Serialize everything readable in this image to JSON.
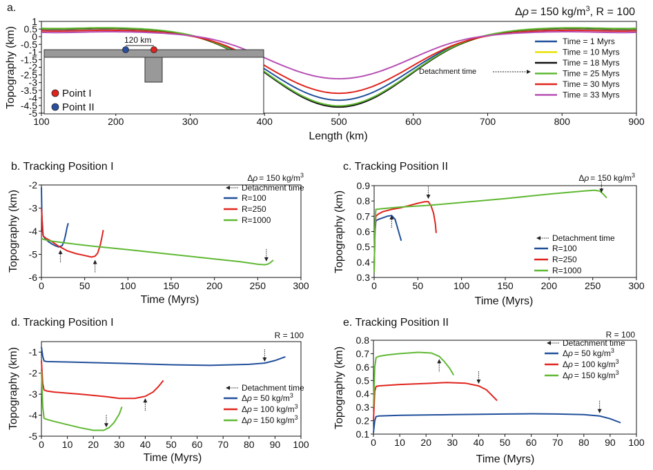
{
  "chart_data": [
    {
      "id": "a",
      "type": "line",
      "panel_label": "a.",
      "title_prefix": "Δ",
      "title_rho": "ρ",
      "title_value": "= 150 kg/m",
      "title_sup": "3",
      "title_suffix": ", R = 100",
      "xlabel": "Length (km)",
      "ylabel": "Topography (km)",
      "xlim": [
        100,
        900
      ],
      "ylim": [
        -5,
        1
      ],
      "xticks": [
        100,
        200,
        300,
        400,
        500,
        600,
        700,
        800,
        900
      ],
      "yticks": [
        1,
        0.5,
        0,
        -0.5,
        -1,
        -1.5,
        -2,
        -2.5,
        -3,
        -3.5,
        -4,
        -4.5,
        -5
      ],
      "series": [
        {
          "name": "Time = 1 Myrs",
          "color": "#1f4e9a",
          "flat": 0.55,
          "min": -4.15
        },
        {
          "name": "Time = 10 Myrs",
          "color": "#e8e000",
          "flat": 0.58,
          "min": -4.55
        },
        {
          "name": "Time = 18 Myrs",
          "color": "#111111",
          "flat": 0.6,
          "min": -4.6
        },
        {
          "name": "Time = 25 Myrs",
          "color": "#5fb832",
          "flat": 0.62,
          "min": -4.52
        },
        {
          "name": "Time = 30 Myrs",
          "color": "#e0231c",
          "flat": 0.45,
          "min": -3.7
        },
        {
          "name": "Time = 33 Myrs",
          "color": "#b64fb4",
          "flat": 0.35,
          "min": -2.75
        }
      ],
      "inset": {
        "distance_label": "120 km",
        "point1_label": "Point I",
        "point2_label": "Point II",
        "point1_color": "#e0231c",
        "point2_color": "#2a4fa0"
      },
      "annotation": "Detachment time"
    },
    {
      "id": "b",
      "type": "line",
      "panel_label": "b. Tracking Position I",
      "header_prefix": "Δ",
      "header_rho": "ρ",
      "header_value": "= 150 kg/m",
      "header_sup": "3",
      "legend_title": "Detachment time",
      "xlabel": "Time (Myrs)",
      "ylabel": "Topography (km)",
      "xlim": [
        0,
        300
      ],
      "ylim": [
        -6,
        -2
      ],
      "xticks": [
        0,
        50,
        100,
        150,
        200,
        250,
        300
      ],
      "yticks": [
        -2,
        -3,
        -4,
        -5,
        -6
      ],
      "series": [
        {
          "name": "R=100",
          "color": "#1f4e9a",
          "x": [
            0,
            0.5,
            1,
            2,
            4,
            8,
            12,
            16,
            20,
            24,
            26,
            28,
            29.5,
            31
          ],
          "y": [
            -2.1,
            -3.2,
            -3.9,
            -4.2,
            -4.3,
            -4.45,
            -4.55,
            -4.63,
            -4.68,
            -4.62,
            -4.45,
            -4.15,
            -3.85,
            -3.65
          ],
          "detach": [
            22,
            -4.72
          ]
        },
        {
          "name": "R=250",
          "color": "#e0231c",
          "x": [
            0,
            2,
            5,
            10,
            20,
            30,
            40,
            50,
            58,
            62,
            65,
            68,
            70,
            71.5
          ],
          "y": [
            -3.0,
            -4.2,
            -4.3,
            -4.4,
            -4.65,
            -4.85,
            -4.97,
            -5.05,
            -5.12,
            -5.08,
            -4.95,
            -4.6,
            -4.25,
            -3.95
          ],
          "detach": [
            62,
            -5.15
          ]
        },
        {
          "name": "R=1000",
          "color": "#5fb832",
          "x": [
            0,
            2,
            10,
            30,
            60,
            100,
            150,
            200,
            230,
            250,
            258,
            262,
            265,
            268
          ],
          "y": [
            -4.3,
            -4.35,
            -4.42,
            -4.52,
            -4.65,
            -4.8,
            -5.0,
            -5.2,
            -5.32,
            -5.43,
            -5.45,
            -5.42,
            -5.35,
            -5.25
          ],
          "detach": [
            260,
            -5.4
          ]
        }
      ]
    },
    {
      "id": "c",
      "type": "line",
      "panel_label": "c. Tracking Position II",
      "header_prefix": "Δ",
      "header_rho": "ρ",
      "header_value": "= 150 kg/m",
      "header_sup": "3",
      "legend_title": "Detachment time",
      "xlabel": "Time (Myrs)",
      "ylabel": "Topography (km)",
      "xlim": [
        0,
        300
      ],
      "ylim": [
        0.3,
        0.9
      ],
      "xticks": [
        0,
        50,
        100,
        150,
        200,
        250,
        300
      ],
      "yticks": [
        0.9,
        0.8,
        0.7,
        0.6,
        0.5,
        0.4,
        0.3
      ],
      "series": [
        {
          "name": "R=100",
          "color": "#1f4e9a",
          "x": [
            0,
            1,
            2,
            5,
            10,
            15,
            20,
            24,
            27,
            29,
            31
          ],
          "y": [
            0.36,
            0.6,
            0.67,
            0.68,
            0.69,
            0.7,
            0.705,
            0.68,
            0.62,
            0.58,
            0.54
          ],
          "detach": [
            20,
            0.72
          ]
        },
        {
          "name": "R=250",
          "color": "#e0231c",
          "x": [
            0,
            1,
            2,
            5,
            10,
            20,
            30,
            40,
            50,
            58,
            62,
            65,
            68,
            70,
            71
          ],
          "y": [
            0.34,
            0.62,
            0.7,
            0.715,
            0.73,
            0.745,
            0.755,
            0.77,
            0.785,
            0.795,
            0.795,
            0.77,
            0.72,
            0.65,
            0.59
          ],
          "detach": [
            62,
            0.8
          ]
        },
        {
          "name": "R=1000",
          "color": "#5fb832",
          "x": [
            0,
            1,
            2,
            10,
            30,
            60,
            100,
            150,
            200,
            240,
            252,
            258,
            262,
            266
          ],
          "y": [
            0.33,
            0.65,
            0.745,
            0.75,
            0.76,
            0.77,
            0.79,
            0.815,
            0.845,
            0.865,
            0.87,
            0.865,
            0.845,
            0.82
          ],
          "detach": [
            260,
            0.84
          ]
        }
      ]
    },
    {
      "id": "d",
      "type": "line",
      "panel_label": "d. Tracking Position I",
      "header_r": "R = 100",
      "legend_title": "Detachment time",
      "xlabel": "Time (Myrs)",
      "ylabel": "Topography (km)",
      "xlim": [
        0,
        100
      ],
      "ylim": [
        -5,
        -0.5
      ],
      "xticks": [
        0,
        10,
        20,
        30,
        40,
        50,
        60,
        70,
        80,
        90,
        100
      ],
      "yticks": [
        -1,
        -2,
        -3,
        -4,
        -5
      ],
      "series": [
        {
          "name_prefix": "Δ",
          "name_rho": "ρ",
          "name_value": "= 50 kg/m",
          "name_sup": "3",
          "color": "#1f4e9a",
          "x": [
            0,
            0.5,
            1,
            2,
            10,
            30,
            50,
            65,
            80,
            86,
            90,
            94
          ],
          "y": [
            -0.75,
            -1.2,
            -1.42,
            -1.45,
            -1.47,
            -1.53,
            -1.6,
            -1.63,
            -1.58,
            -1.52,
            -1.4,
            -1.22
          ],
          "detach": [
            86,
            -1.55
          ]
        },
        {
          "name_prefix": "Δ",
          "name_rho": "ρ",
          "name_value": "= 100 kg/m",
          "name_sup": "3",
          "color": "#e0231c",
          "x": [
            0,
            0.5,
            1,
            2,
            5,
            15,
            25,
            30,
            36,
            40,
            43,
            45,
            47
          ],
          "y": [
            -1.4,
            -2.5,
            -2.8,
            -2.85,
            -2.9,
            -3.0,
            -3.12,
            -3.2,
            -3.2,
            -3.1,
            -2.9,
            -2.65,
            -2.35
          ],
          "detach": [
            40,
            -3.1
          ]
        },
        {
          "name_prefix": "Δ",
          "name_rho": "ρ",
          "name_value": "= 150 kg/m",
          "name_sup": "3",
          "color": "#5fb832",
          "x": [
            0,
            0.5,
            1,
            2,
            5,
            10,
            15,
            20,
            24,
            26,
            28,
            30,
            31
          ],
          "y": [
            -1.9,
            -3.6,
            -4.15,
            -4.2,
            -4.3,
            -4.45,
            -4.6,
            -4.72,
            -4.72,
            -4.6,
            -4.35,
            -3.95,
            -3.6
          ],
          "detach": [
            25,
            -4.68
          ]
        }
      ]
    },
    {
      "id": "e",
      "type": "line",
      "panel_label": "e. Tracking Position II",
      "header_r": "R = 100",
      "legend_title": "Detachment time",
      "xlabel": "Time (Myrs)",
      "ylabel": "Topography (km)",
      "xlim": [
        0,
        100
      ],
      "ylim": [
        0.1,
        0.8
      ],
      "xticks": [
        0,
        10,
        20,
        30,
        40,
        50,
        60,
        70,
        80,
        90,
        100
      ],
      "yticks": [
        0.8,
        0.7,
        0.6,
        0.5,
        0.4,
        0.3,
        0.2,
        0.1
      ],
      "series": [
        {
          "name_prefix": "Δ",
          "name_rho": "ρ",
          "name_value": "= 50 kg/m",
          "name_sup": "3",
          "color": "#1f4e9a",
          "x": [
            0,
            0.5,
            1,
            2,
            10,
            30,
            50,
            60,
            70,
            80,
            86,
            90,
            94
          ],
          "y": [
            0.11,
            0.2,
            0.23,
            0.235,
            0.24,
            0.245,
            0.25,
            0.252,
            0.25,
            0.245,
            0.235,
            0.215,
            0.185
          ],
          "detach": [
            86,
            0.24
          ]
        },
        {
          "name_prefix": "Δ",
          "name_rho": "ρ",
          "name_value": "= 100 kg/m",
          "name_sup": "3",
          "color": "#e0231c",
          "x": [
            0,
            0.5,
            1,
            2,
            10,
            20,
            28,
            35,
            40,
            43,
            45,
            47
          ],
          "y": [
            0.2,
            0.42,
            0.455,
            0.46,
            0.47,
            0.478,
            0.485,
            0.48,
            0.46,
            0.43,
            0.39,
            0.35
          ],
          "detach": [
            40,
            0.46
          ]
        },
        {
          "name_prefix": "Δ",
          "name_rho": "ρ",
          "name_value": "= 150 kg/m",
          "name_sup": "3",
          "color": "#5fb832",
          "x": [
            0,
            0.5,
            1,
            2,
            5,
            10,
            17,
            22,
            25,
            27,
            29,
            30.5
          ],
          "y": [
            0.3,
            0.6,
            0.67,
            0.68,
            0.69,
            0.7,
            0.71,
            0.705,
            0.68,
            0.64,
            0.59,
            0.54
          ],
          "detach": [
            25,
            0.675
          ]
        }
      ]
    }
  ]
}
